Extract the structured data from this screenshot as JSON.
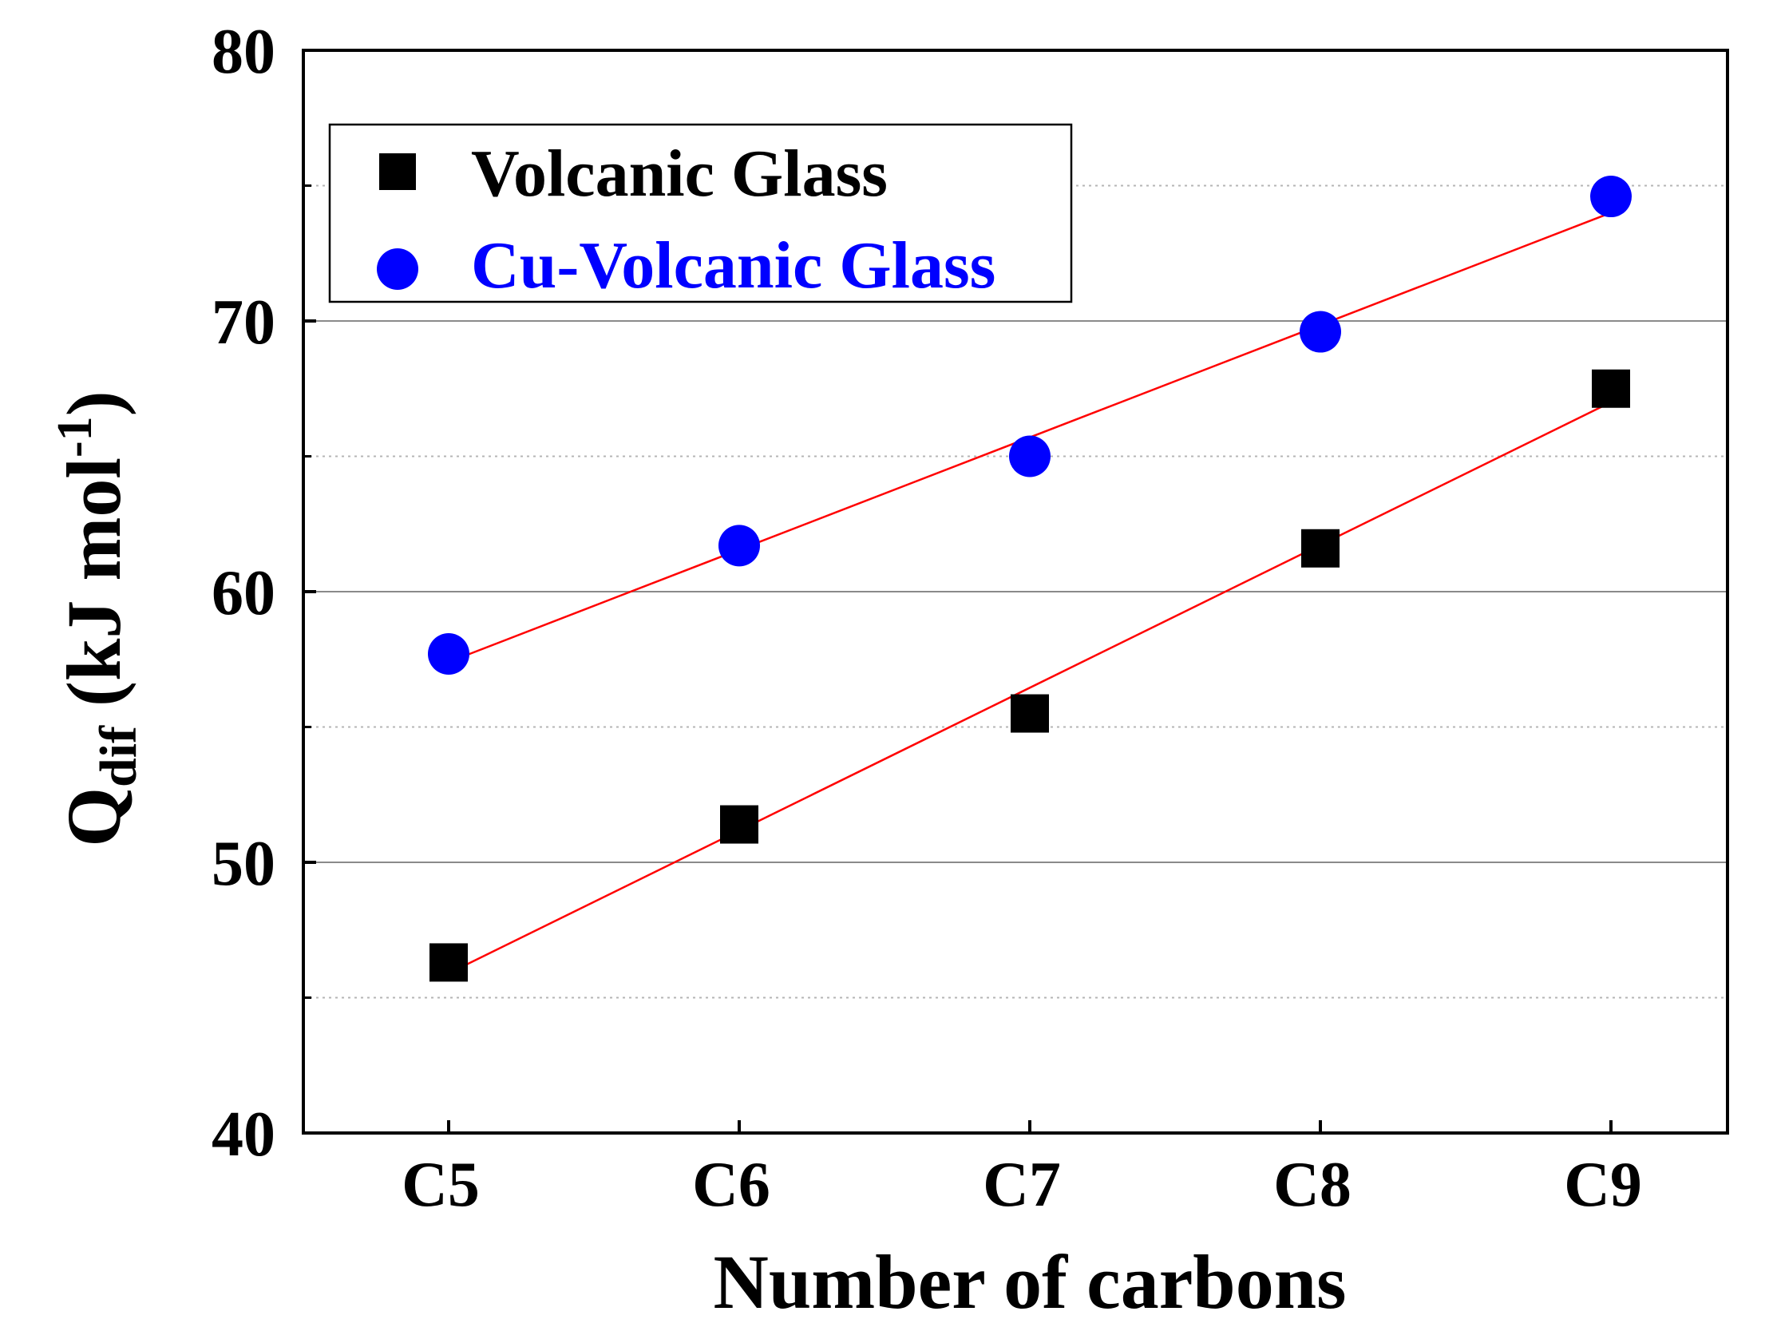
{
  "chart_data": {
    "type": "scatter",
    "title": "",
    "xlabel": "Number of carbons",
    "ylabel": {
      "main": "Q",
      "sub": "dif",
      "units_prefix": " (kJ mol",
      "units_sup": "-1",
      "units_suffix": ")"
    },
    "categories": [
      "C5",
      "C6",
      "C7",
      "C8",
      "C9"
    ],
    "ylim": [
      40,
      80
    ],
    "yticks": [
      40,
      50,
      60,
      70,
      80
    ],
    "ytick_labels": [
      "40",
      "50",
      "60",
      "70",
      "80"
    ],
    "minor_gridlines": [
      45,
      55,
      65,
      75
    ],
    "grid": true,
    "legend_position": "top-left",
    "series": [
      {
        "name": "Volcanic Glass",
        "marker": "square",
        "color": "#000000",
        "values": [
          46.3,
          51.4,
          55.5,
          61.6,
          67.5
        ],
        "fit": {
          "color": "#ff0000",
          "start": 45.9,
          "end": 67.0
        }
      },
      {
        "name": "Cu-Volcanic Glass",
        "marker": "circle",
        "color": "#0000ff",
        "values": [
          57.7,
          61.7,
          65.0,
          69.6,
          74.6
        ],
        "fit": {
          "color": "#ff0000",
          "start": 57.4,
          "end": 74.0
        }
      }
    ]
  }
}
